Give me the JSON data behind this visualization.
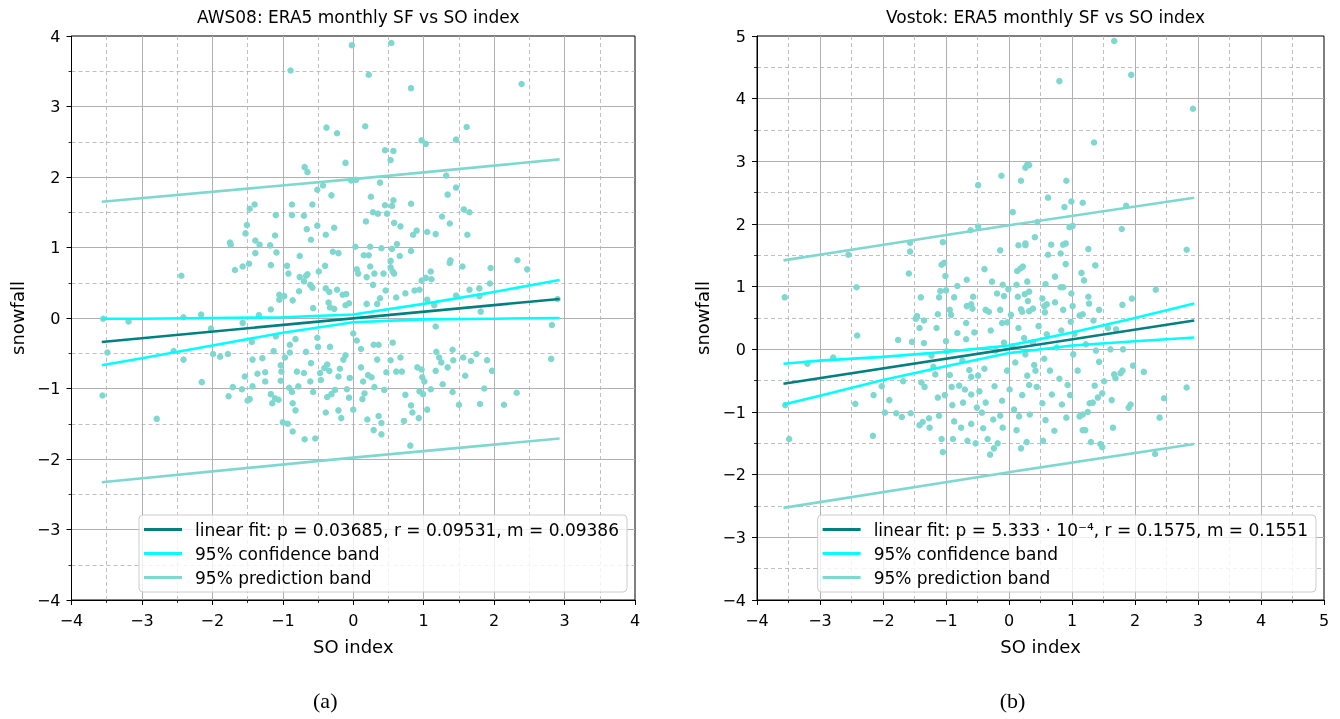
{
  "chart_data": [
    {
      "type": "scatter",
      "title": "AWS08: ERA5 monthly SF vs SO index",
      "xlabel": "SO index",
      "ylabel": "snowfall",
      "annotations": [
        "(a)"
      ],
      "xlim": [
        -4,
        4
      ],
      "ylim": [
        -4,
        4
      ],
      "xticks": [
        -4,
        {
          "value": -3.5,
          "label": null
        },
        -3,
        {
          "value": -2.5,
          "label": null
        },
        -2,
        {
          "value": -1.5,
          "label": null
        },
        -1,
        {
          "value": -0.5,
          "label": null
        },
        0,
        {
          "value": 0.5,
          "label": null
        },
        1,
        {
          "value": 1.5,
          "label": null
        },
        2,
        {
          "value": 2.5,
          "label": null
        },
        3,
        {
          "value": 3.5,
          "label": null
        },
        4
      ],
      "yticks": [
        -4,
        {
          "value": -3.5,
          "label": null
        },
        -3,
        {
          "value": -2.5,
          "label": null
        },
        -2,
        {
          "value": -1.5,
          "label": null
        },
        -1,
        {
          "value": -0.5,
          "label": null
        },
        0,
        {
          "value": 0.5,
          "label": null
        },
        1,
        {
          "value": 1.5,
          "label": null
        },
        2,
        {
          "value": 2.5,
          "label": null
        },
        3,
        {
          "value": 3.5,
          "label": null
        },
        4
      ],
      "grid": true,
      "legend": "bottom right",
      "series": [
        {
          "color": "#7fd8cf",
          "marker": "circle",
          "x": [
            -0.02,
            0.54,
            -0.89,
            0.22,
            0.82,
            2.39,
            -0.38,
            -0.23,
            0.17,
            1.61,
            0.97,
            1.03,
            1.46,
            0.45,
            0.57,
            0.53,
            -0.11,
            -0.69,
            -0.65,
            1.32,
            -0.03,
            0.04,
            0.38,
            -0.51,
            -0.43,
            -0.31,
            0.25,
            1.46,
            1.34,
            -0.87,
            -1.4,
            -1.47,
            -0.58,
            0.57,
            0.45,
            0.55,
            0.82,
            -1.1,
            -0.87,
            -0.7,
            0.28,
            0.35,
            0.48,
            1.57,
            1.65,
            1.26,
            0.18,
            0.58,
            0.67,
            1.37,
            -1.51,
            -0.66,
            -0.51,
            -0.27,
            -1.53,
            -1.11,
            -0.39,
            0.9,
            0.85,
            1.05,
            1.17,
            1.62,
            -1.75,
            -1.74,
            -1.39,
            -1.33,
            -1.18,
            -0.6,
            0.03,
            0.24,
            0.4,
            0.55,
            0.62,
            0.82,
            -1.39,
            -1.09,
            -0.29,
            -0.21,
            0.15,
            0.22,
            0.66,
            -0.76,
            -1.17,
            -2.44,
            -1.68,
            -1.57,
            -1.48,
            -0.94,
            -0.92,
            -0.76,
            -0.67,
            -0.65,
            -0.49,
            -0.4,
            0.05,
            0.07,
            0.19,
            0.24,
            0.3,
            0.43,
            0.53,
            0.53,
            0.56,
            0.58,
            1.38,
            1.37,
            1.55,
            1.95,
            2.33,
            2.47,
            1.1,
            1.03,
            1.11,
            0.97,
            -0.7,
            -0.58,
            -0.61,
            -0.77,
            -0.39,
            -0.34,
            -0.23,
            -0.15,
            -0.1,
            0.28,
            0.46,
            0.38,
            0.61,
            0.74,
            0.87,
            0.94,
            1.46,
            1.65,
            1.79,
            1.79,
            1.94,
            -1.05,
            -0.98,
            -1.05,
            -0.86,
            -1.17,
            -0.57,
            -0.35,
            -0.33,
            -0.27,
            -0.11,
            -0.06,
            0.19,
            0.34,
            1.05,
            1.15,
            1.81,
            2.9,
            -2.41,
            -2.16,
            -1.57,
            -1.34,
            -3.55,
            -3.19,
            2.82,
            -3.49,
            -3.56,
            -2.79,
            -2.55,
            -2.41,
            -2.15,
            -2.02,
            -1.99,
            -1.89,
            -1.78,
            -1.77,
            -1.71,
            -1.58,
            -1.54,
            -1.5,
            -1.47,
            -1.44,
            -1.43,
            -1.43,
            -1.36,
            -1.29,
            -1.25,
            -1.25,
            -1.17,
            -1.15,
            -1.11,
            -1.06,
            -1.13,
            -1.1,
            -1.03,
            -1.02,
            -1.03,
            -0.97,
            -0.9,
            -0.9,
            -0.91,
            -0.87,
            -1.0,
            -0.93,
            -0.86,
            -0.82,
            -0.86,
            -0.82,
            -0.8,
            -0.78,
            -0.69,
            -0.54,
            -0.67,
            -0.7,
            -0.61,
            -0.6,
            -0.57,
            -0.51,
            -0.5,
            -0.47,
            -0.46,
            -0.39,
            -0.37,
            -0.31,
            -0.41,
            -0.37,
            -0.34,
            -0.33,
            -0.21,
            -0.17,
            -0.19,
            -0.21,
            -0.26,
            -0.14,
            -0.11,
            -0.09,
            -0.06,
            0.0,
            -0.05,
            0.0,
            0.05,
            0.11,
            0.11,
            0.14,
            0.16,
            0.13,
            0.2,
            0.21,
            0.26,
            0.3,
            0.29,
            0.36,
            0.4,
            0.4,
            0.29,
            0.36,
            0.34,
            0.44,
            0.47,
            0.53,
            0.56,
            0.61,
            0.67,
            0.69,
            0.72,
            0.74,
            0.82,
            0.84,
            0.81,
            0.93,
            0.91,
            0.97,
            0.94,
            0.99,
            1.05,
            1.01,
            0.98,
            1.1,
            1.17,
            1.18,
            1.22,
            1.17,
            1.27,
            1.25,
            1.34,
            1.41,
            1.42,
            1.41,
            1.5,
            1.56,
            1.59,
            1.67,
            1.8,
            1.86,
            1.75,
            1.9,
            1.97,
            2.14,
            2.32,
            2.81
          ],
          "values": [
            3.87,
            3.9,
            3.51,
            3.45,
            3.26,
            3.32,
            2.7,
            2.62,
            2.72,
            2.71,
            2.52,
            2.47,
            2.53,
            2.38,
            2.37,
            2.24,
            2.2,
            2.14,
            2.07,
            2.02,
            1.95,
            1.96,
            1.92,
            1.82,
            1.88,
            1.74,
            1.72,
            1.85,
            1.75,
            1.61,
            1.61,
            1.55,
            1.61,
            1.67,
            1.6,
            1.59,
            1.62,
            1.46,
            1.46,
            1.45,
            1.5,
            1.48,
            1.48,
            1.54,
            1.5,
            1.44,
            1.37,
            1.35,
            1.3,
            1.34,
            1.32,
            1.26,
            1.31,
            1.28,
            1.2,
            1.17,
            1.18,
            1.24,
            1.18,
            1.22,
            1.19,
            1.18,
            1.07,
            1.04,
            1.1,
            1.04,
            1.03,
            1.11,
            1.01,
            1.01,
            0.99,
            0.98,
            1.05,
            0.95,
            0.92,
            0.93,
            0.94,
            0.92,
            0.89,
            0.89,
            0.88,
            0.88,
            0.75,
            0.6,
            0.68,
            0.73,
            0.77,
            0.74,
            0.63,
            0.58,
            0.6,
            0.62,
            0.66,
            0.74,
            0.69,
            0.63,
            0.58,
            0.73,
            0.63,
            0.63,
            0.81,
            0.72,
            0.66,
            0.63,
            0.82,
            0.78,
            0.73,
            0.71,
            0.82,
            0.69,
            0.66,
            0.57,
            0.55,
            0.53,
            0.52,
            0.43,
            0.47,
            0.38,
            0.42,
            0.37,
            0.4,
            0.33,
            0.34,
            0.47,
            0.39,
            0.28,
            0.29,
            0.35,
            0.39,
            0.4,
            0.32,
            0.4,
            0.42,
            0.31,
            0.49,
            0.33,
            0.31,
            0.26,
            0.25,
            0.12,
            0.14,
            0.22,
            0.15,
            0.13,
            0.18,
            0.21,
            0.2,
            0.2,
            0.26,
            0.18,
            0.09,
            0.27,
            0.01,
            0.05,
            -0.07,
            0.04,
            -0.01,
            -0.05,
            -0.1,
            -0.49,
            -1.1,
            -1.43,
            -0.47,
            -0.59,
            -0.91,
            -0.15,
            -0.51,
            -0.55,
            -0.51,
            -1.11,
            -0.98,
            -1.01,
            -0.83,
            -1.17,
            -1.15,
            -0.34,
            -0.59,
            -0.97,
            -0.79,
            -0.57,
            -0.77,
            -0.9,
            -1.08,
            -1.21,
            -1.14,
            -1.16,
            -0.47,
            -0.26,
            -0.67,
            -0.76,
            -0.89,
            -0.56,
            -0.38,
            -0.49,
            -0.99,
            -1.05,
            -1.48,
            -1.5,
            -1.21,
            -1.31,
            -1.61,
            -0.3,
            -0.76,
            -0.97,
            -1.72,
            -1.71,
            -0.48,
            -0.78,
            -0.9,
            -0.64,
            -1.05,
            -0.28,
            -0.41,
            -0.78,
            -0.88,
            -1.34,
            -1.12,
            -1.08,
            -0.71,
            -0.66,
            -0.75,
            -0.41,
            -1.31,
            -1.42,
            -0.72,
            -0.83,
            -1.02,
            -0.59,
            -0.53,
            -1.01,
            -1.13,
            -1.3,
            -0.85,
            -0.22,
            -0.32,
            -0.44,
            -0.7,
            -0.9,
            -1.07,
            -1.15,
            -1.44,
            -0.81,
            -0.84,
            -0.98,
            -1.59,
            -1.39,
            -1.49,
            -1.65,
            -0.38,
            -0.38,
            -0.59,
            -1.02,
            -0.77,
            -0.6,
            -0.35,
            -0.76,
            -0.56,
            -0.76,
            -1.46,
            -1.09,
            -1.24,
            -1.34,
            -1.81,
            -1.42,
            -0.7,
            -0.73,
            -1.04,
            -1.08,
            -1.3,
            -0.9,
            -0.84,
            -1.01,
            -0.12,
            -0.48,
            -0.56,
            -0.75,
            -0.94,
            -0.63,
            -0.7,
            -0.45,
            -0.6,
            -1.05,
            -1.23,
            -0.56,
            -0.82,
            -0.61,
            -1.22,
            -1.0,
            -0.51,
            -0.6,
            -0.75,
            -1.23,
            -1.06,
            -0.58
          ]
        },
        {
          "type": "line",
          "name": "linear fit: p = 0.03685, r = 0.09531, m = 0.09386",
          "color": "#008080",
          "x": [
            -3.57,
            2.93
          ],
          "values": [
            -0.34,
            0.27
          ]
        },
        {
          "type": "line",
          "name": "95% confidence band",
          "color": "#00ffff",
          "x": [
            -3.57,
            -3,
            -2,
            -1,
            0,
            1,
            2,
            2.93
          ],
          "values": [
            -0.01,
            -0.01,
            0.0,
            0.01,
            0.05,
            0.2,
            0.37,
            0.54
          ]
        },
        {
          "type": "line",
          "color": "#00ffff",
          "x": [
            -3.57,
            -3,
            -2,
            -1,
            0,
            1,
            2,
            2.93
          ],
          "values": [
            -0.67,
            -0.57,
            -0.39,
            -0.21,
            -0.06,
            -0.02,
            -0.01,
            0.0
          ]
        },
        {
          "type": "line",
          "name": "95% prediction band",
          "color": "#7fd8cf",
          "x": [
            -3.57,
            0,
            2.93
          ],
          "values": [
            1.65,
            1.97,
            2.25
          ]
        },
        {
          "type": "line",
          "color": "#7fd8cf",
          "x": [
            -3.57,
            0,
            2.93
          ],
          "values": [
            -2.33,
            -1.98,
            -1.71
          ]
        }
      ]
    },
    {
      "type": "scatter",
      "title": "Vostok: ERA5 monthly SF vs SO index",
      "xlabel": "SO index",
      "ylabel": "snowfall",
      "annotations": [
        "(b)"
      ],
      "xlim": [
        -4,
        5
      ],
      "ylim": [
        -4,
        5
      ],
      "xticks": [
        -4,
        {
          "value": -3.5,
          "label": null
        },
        -3,
        {
          "value": -2.5,
          "label": null
        },
        -2,
        {
          "value": -1.5,
          "label": null
        },
        -1,
        {
          "value": -0.5,
          "label": null
        },
        0,
        {
          "value": 0.5,
          "label": null
        },
        1,
        {
          "value": 1.5,
          "label": null
        },
        2,
        {
          "value": 2.5,
          "label": null
        },
        3,
        {
          "value": 3.5,
          "label": null
        },
        4,
        {
          "value": 4.5,
          "label": null
        },
        5
      ],
      "yticks": [
        -4,
        {
          "value": -3.5,
          "label": null
        },
        -3,
        {
          "value": -2.5,
          "label": null
        },
        -2,
        {
          "value": -1.5,
          "label": null
        },
        -1,
        {
          "value": -0.5,
          "label": null
        },
        0,
        {
          "value": 0.5,
          "label": null
        },
        1,
        {
          "value": 1.5,
          "label": null
        },
        2,
        {
          "value": 2.5,
          "label": null
        },
        3,
        {
          "value": 3.5,
          "label": null
        },
        4,
        {
          "value": 4.5,
          "label": null
        },
        5
      ],
      "grid": true,
      "legend": "bottom right",
      "series": [
        {
          "color": "#7fd8cf",
          "marker": "circle",
          "x": [
            1.67,
            0.8,
            1.94,
            2.92,
            1.35,
            0.29,
            0.32,
            0.26,
            -0.49,
            -0.12,
            0.19,
            0.91,
            0.62,
            0.99,
            1.17,
            1.86,
            0.06,
            0.45,
            -0.61,
            -0.49,
            1.79,
            0.88,
            0.96,
            1.01,
            0.41,
            -1.57,
            -1.05,
            -1.57,
            -2.55,
            -0.14,
            0.15,
            0.26,
            0.26,
            0.67,
            0.86,
            0.9,
            1.26,
            2.82,
            0.62,
            0.82,
            -1.59,
            -1.07,
            -1.03,
            -0.39,
            0.13,
            0.18,
            0.22,
            0.9,
            0.73,
            1.15,
            1.19,
            1.37,
            -1.01,
            -0.67,
            -2.42,
            -0.82,
            -0.27,
            -0.1,
            0.12,
            0.29,
            0.58,
            0.82,
            0.86,
            -3.56,
            -1.4,
            -1.11,
            -1.09,
            -1.0,
            -0.87,
            -0.57,
            -0.67,
            -0.6,
            -0.58,
            -0.19,
            -0.08,
            -0.01,
            0.14,
            0.25,
            0.32,
            0.3,
            0.53,
            0.6,
            0.56,
            0.73,
            0.99,
            1.01,
            1.26,
            1.27,
            1.43,
            2.33,
            1.8,
            1.95,
            -1.13,
            -0.94,
            -0.92,
            -0.37,
            -0.32,
            -0.14,
            0.03,
            0.19,
            0.21,
            0.32,
            0.38,
            0.57,
            0.86,
            1.12,
            1.17,
            1.34,
            -1.46,
            -1.48,
            -1.35,
            -0.68,
            -0.11,
            0.98,
            -2.41,
            -3.2,
            -2.79,
            -3.55,
            -3.49,
            -2.44,
            -2.16,
            -2.15,
            -2.02,
            -1.97,
            -1.9,
            -1.79,
            -1.7,
            -1.76,
            -1.68,
            -1.56,
            -1.54,
            -1.42,
            -1.42,
            -1.37,
            -1.39,
            -1.35,
            -1.34,
            -1.27,
            -1.26,
            -1.23,
            -1.2,
            -1.15,
            -1.13,
            -1.11,
            -1.17,
            -1.07,
            -1.05,
            -1.02,
            -1.0,
            -0.99,
            -0.94,
            -0.91,
            -0.9,
            -0.89,
            -0.87,
            -0.82,
            -0.79,
            -0.76,
            -0.74,
            -0.73,
            -0.7,
            -0.68,
            -0.66,
            -0.63,
            -0.6,
            -0.6,
            -0.6,
            -0.55,
            -0.53,
            -0.51,
            -0.49,
            -0.47,
            -0.43,
            -0.41,
            -0.39,
            -0.37,
            -0.34,
            -0.3,
            -0.29,
            -0.25,
            -0.24,
            -0.23,
            -0.21,
            -0.18,
            -0.14,
            -0.11,
            -0.1,
            -0.08,
            -0.03,
            -0.03,
            0.01,
            0.05,
            0.08,
            0.1,
            0.12,
            0.15,
            0.16,
            0.19,
            0.21,
            0.24,
            0.26,
            0.28,
            0.29,
            0.32,
            0.33,
            0.38,
            0.4,
            0.42,
            0.44,
            0.47,
            0.53,
            0.54,
            0.56,
            0.58,
            0.6,
            0.65,
            0.68,
            0.72,
            0.76,
            0.8,
            0.83,
            0.84,
            0.91,
            0.93,
            0.97,
            1.02,
            1.04,
            1.09,
            1.12,
            1.17,
            1.17,
            1.21,
            1.22,
            1.25,
            1.28,
            1.3,
            1.33,
            1.36,
            1.38,
            1.41,
            1.43,
            1.45,
            1.48,
            1.48,
            1.51,
            1.57,
            1.61,
            1.63,
            1.65,
            1.67,
            1.69,
            1.77,
            1.8,
            1.81,
            1.9,
            1.93,
            1.97,
            2.14,
            2.39,
            2.32,
            2.46,
            2.82,
            1.7
          ],
          "values": [
            4.92,
            4.28,
            4.38,
            3.84,
            3.3,
            2.95,
            2.94,
            2.9,
            2.62,
            2.77,
            2.69,
            2.69,
            2.42,
            2.36,
            2.34,
            2.29,
            2.19,
            2.03,
            1.9,
            1.96,
            1.92,
            2.27,
            1.95,
            1.97,
            1.79,
            1.7,
            1.71,
            1.56,
            1.51,
            1.58,
            1.66,
            1.69,
            1.66,
            1.67,
            1.67,
            1.69,
            1.6,
            1.59,
            1.51,
            1.53,
            1.21,
            1.35,
            1.38,
            1.28,
            1.25,
            1.29,
            1.32,
            1.36,
            1.16,
            1.22,
            1.1,
            1.34,
            1.17,
            1.11,
            0.99,
            1.01,
            1.08,
            1.03,
            1.03,
            1.08,
            1.04,
            0.99,
            0.99,
            0.83,
            0.83,
            0.83,
            0.93,
            0.94,
            0.83,
            0.84,
            0.69,
            0.72,
            0.65,
            0.89,
            0.85,
            0.96,
            0.84,
            0.88,
            0.92,
            0.77,
            0.81,
            0.72,
            0.69,
            0.75,
            0.89,
            0.69,
            0.84,
            0.73,
            0.63,
            0.95,
            0.71,
            0.81,
            0.56,
            0.63,
            0.55,
            0.63,
            0.6,
            0.63,
            0.55,
            0.64,
            0.6,
            0.61,
            0.65,
            0.59,
            0.63,
            0.54,
            0.56,
            0.46,
            0.53,
            0.49,
            0.46,
            0.42,
            0.42,
            0.44,
            0.22,
            -0.23,
            -0.13,
            -0.89,
            -1.43,
            -0.87,
            -1.38,
            -0.73,
            -0.59,
            -1.01,
            -0.81,
            -1.02,
            -1.08,
            0.15,
            -0.51,
            -1.02,
            0.12,
            0.34,
            -1.21,
            -1.16,
            -0.53,
            0.1,
            -0.6,
            -1.1,
            -1.25,
            -0.1,
            -0.28,
            0.34,
            -0.77,
            -1.06,
            -0.4,
            -1.43,
            -1.64,
            -0.73,
            0.13,
            -0.03,
            -0.41,
            -0.6,
            -0.89,
            -1.43,
            -1.15,
            0.26,
            -0.58,
            -1.25,
            -0.18,
            -0.85,
            -0.64,
            0.16,
            -1.46,
            -0.33,
            -0.44,
            -0.72,
            -1.19,
            0.27,
            -1.5,
            -0.93,
            -0.42,
            -0.67,
            -1.01,
            -1.26,
            -0.31,
            -0.85,
            -1.43,
            -1.68,
            0.3,
            -1.12,
            -1.58,
            -0.59,
            -0.02,
            -1.5,
            -1.06,
            -0.82,
            -1.25,
            0.11,
            -0.34,
            0.43,
            -0.64,
            0.05,
            -0.96,
            -0.21,
            -1.29,
            0.34,
            -1.07,
            -1.58,
            -0.73,
            0.18,
            -0.08,
            -1.48,
            -0.42,
            -0.57,
            -1.04,
            0.11,
            -0.25,
            -0.34,
            -0.6,
            0.37,
            -0.86,
            -1.46,
            -0.15,
            -1.13,
            0.24,
            -0.34,
            -0.72,
            -1.3,
            0.03,
            -0.47,
            0.3,
            -0.88,
            -1.09,
            -0.57,
            -0.73,
            -0.08,
            0.25,
            -0.34,
            -1.07,
            -1.04,
            -1.29,
            -1.29,
            0.08,
            -1.0,
            -0.86,
            -1.48,
            -0.85,
            -0.58,
            -0.02,
            -0.77,
            -0.2,
            -1.51,
            -1.56,
            -0.7,
            -0.51,
            0.34,
            0.0,
            -0.81,
            -1.25,
            -0.4,
            -0.46,
            -0.38,
            -0.34,
            0.0,
            -0.93,
            -0.88,
            -0.26,
            -0.36,
            -1.09,
            -1.67,
            -0.78,
            -0.61,
            0.32
          ]
        },
        {
          "type": "line",
          "name": "linear fit: p = 5.333 · 10⁻⁴, r = 0.1575, m = 0.1551",
          "color": "#008080",
          "x": [
            -3.58,
            2.94
          ],
          "values": [
            -0.55,
            0.46
          ]
        },
        {
          "type": "line",
          "name": "95% confidence band",
          "color": "#00ffff",
          "x": [
            -3.58,
            -3,
            -2,
            -1,
            0,
            1,
            2,
            2.94
          ],
          "values": [
            -0.23,
            -0.18,
            -0.12,
            -0.04,
            0.06,
            0.27,
            0.5,
            0.73
          ]
        },
        {
          "type": "line",
          "color": "#00ffff",
          "x": [
            -3.58,
            -3,
            -2,
            -1,
            0,
            1,
            2,
            2.94
          ],
          "values": [
            -0.88,
            -0.74,
            -0.49,
            -0.27,
            -0.06,
            0.06,
            0.13,
            0.19
          ]
        },
        {
          "type": "line",
          "name": "95% prediction band",
          "color": "#7fd8cf",
          "x": [
            -3.58,
            0,
            2.94
          ],
          "values": [
            1.42,
            1.98,
            2.42
          ]
        },
        {
          "type": "line",
          "color": "#7fd8cf",
          "x": [
            -3.58,
            0,
            2.94
          ],
          "values": [
            -2.53,
            -1.96,
            -1.51
          ]
        }
      ]
    }
  ]
}
